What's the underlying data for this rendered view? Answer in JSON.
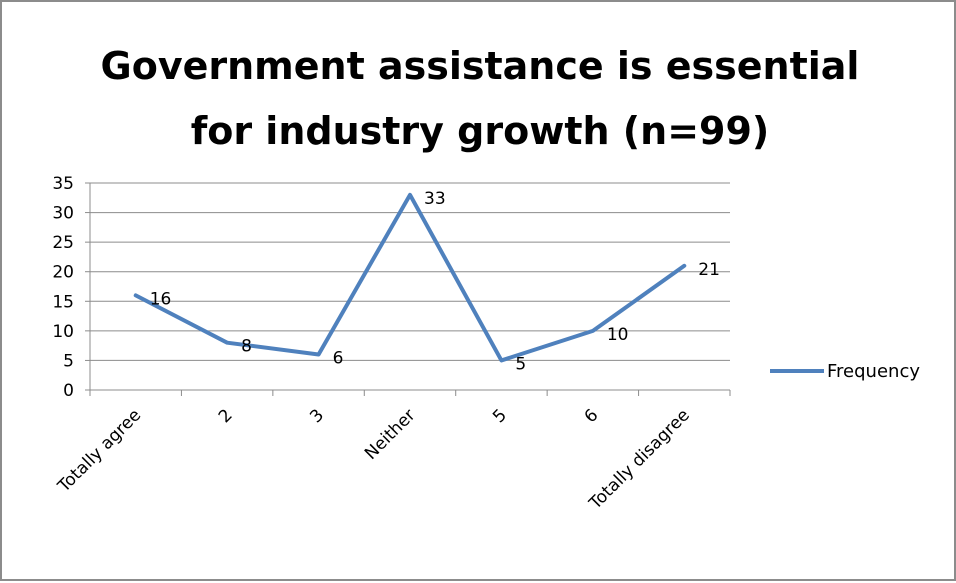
{
  "chart_data": {
    "type": "line",
    "title_lines": [
      "Government assistance is essential",
      "for industry growth (n=99)"
    ],
    "categories": [
      "Totally agree",
      "2",
      "3",
      "Neither",
      "5",
      "6",
      "Totally disagree"
    ],
    "series": [
      {
        "name": "Frequency",
        "values": [
          16,
          8,
          6,
          33,
          5,
          10,
          21
        ],
        "color": "#4f81bd"
      }
    ],
    "ylim": [
      0,
      35
    ],
    "yticks": [
      0,
      5,
      10,
      15,
      20,
      25,
      30,
      35
    ],
    "grid": true,
    "gridline_color": "#8c8c8c",
    "legend_position": "right",
    "data_labels": true
  }
}
